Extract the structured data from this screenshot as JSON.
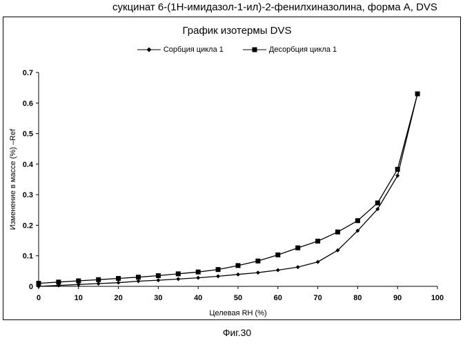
{
  "header": {
    "caption": "сукцинат 6-(1Н-имидазол-1-ил)-2-фенилхиназолина, форма А, DVS"
  },
  "footer": {
    "figure_label": "Фиг.30"
  },
  "chart_data": {
    "type": "line",
    "title": "График изотермы DVS",
    "xlabel": "Целевая RH (%)",
    "ylabel": "Изменение в массе (%) –Ref",
    "xlim": [
      0,
      100
    ],
    "ylim": [
      0,
      0.7
    ],
    "xticks": [
      "0",
      "10",
      "20",
      "30",
      "40",
      "50",
      "60",
      "70",
      "80",
      "90",
      "100"
    ],
    "yticks": [
      "0",
      "0.1",
      "0.2",
      "0.3",
      "0.4",
      "0.5",
      "0.6",
      "0.7"
    ],
    "grid": false,
    "legend_position": "top",
    "series": [
      {
        "name": "Сорбция цикла 1",
        "marker": "diamond",
        "color": "#000000",
        "x": [
          0,
          5,
          10,
          15,
          20,
          25,
          30,
          35,
          40,
          45,
          50,
          55,
          60,
          65,
          70,
          75,
          80,
          85,
          90,
          95
        ],
        "y": [
          0.0,
          0.003,
          0.006,
          0.009,
          0.012,
          0.017,
          0.02,
          0.024,
          0.028,
          0.033,
          0.039,
          0.045,
          0.053,
          0.063,
          0.08,
          0.118,
          0.182,
          0.253,
          0.362,
          0.63
        ]
      },
      {
        "name": "Десорбция цикла 1",
        "marker": "square",
        "color": "#000000",
        "x": [
          0,
          5,
          10,
          15,
          20,
          25,
          30,
          35,
          40,
          45,
          50,
          55,
          60,
          65,
          70,
          75,
          80,
          85,
          90,
          95
        ],
        "y": [
          0.01,
          0.014,
          0.018,
          0.022,
          0.026,
          0.03,
          0.035,
          0.041,
          0.047,
          0.055,
          0.068,
          0.083,
          0.103,
          0.126,
          0.148,
          0.178,
          0.215,
          0.273,
          0.383,
          0.63
        ]
      }
    ]
  }
}
